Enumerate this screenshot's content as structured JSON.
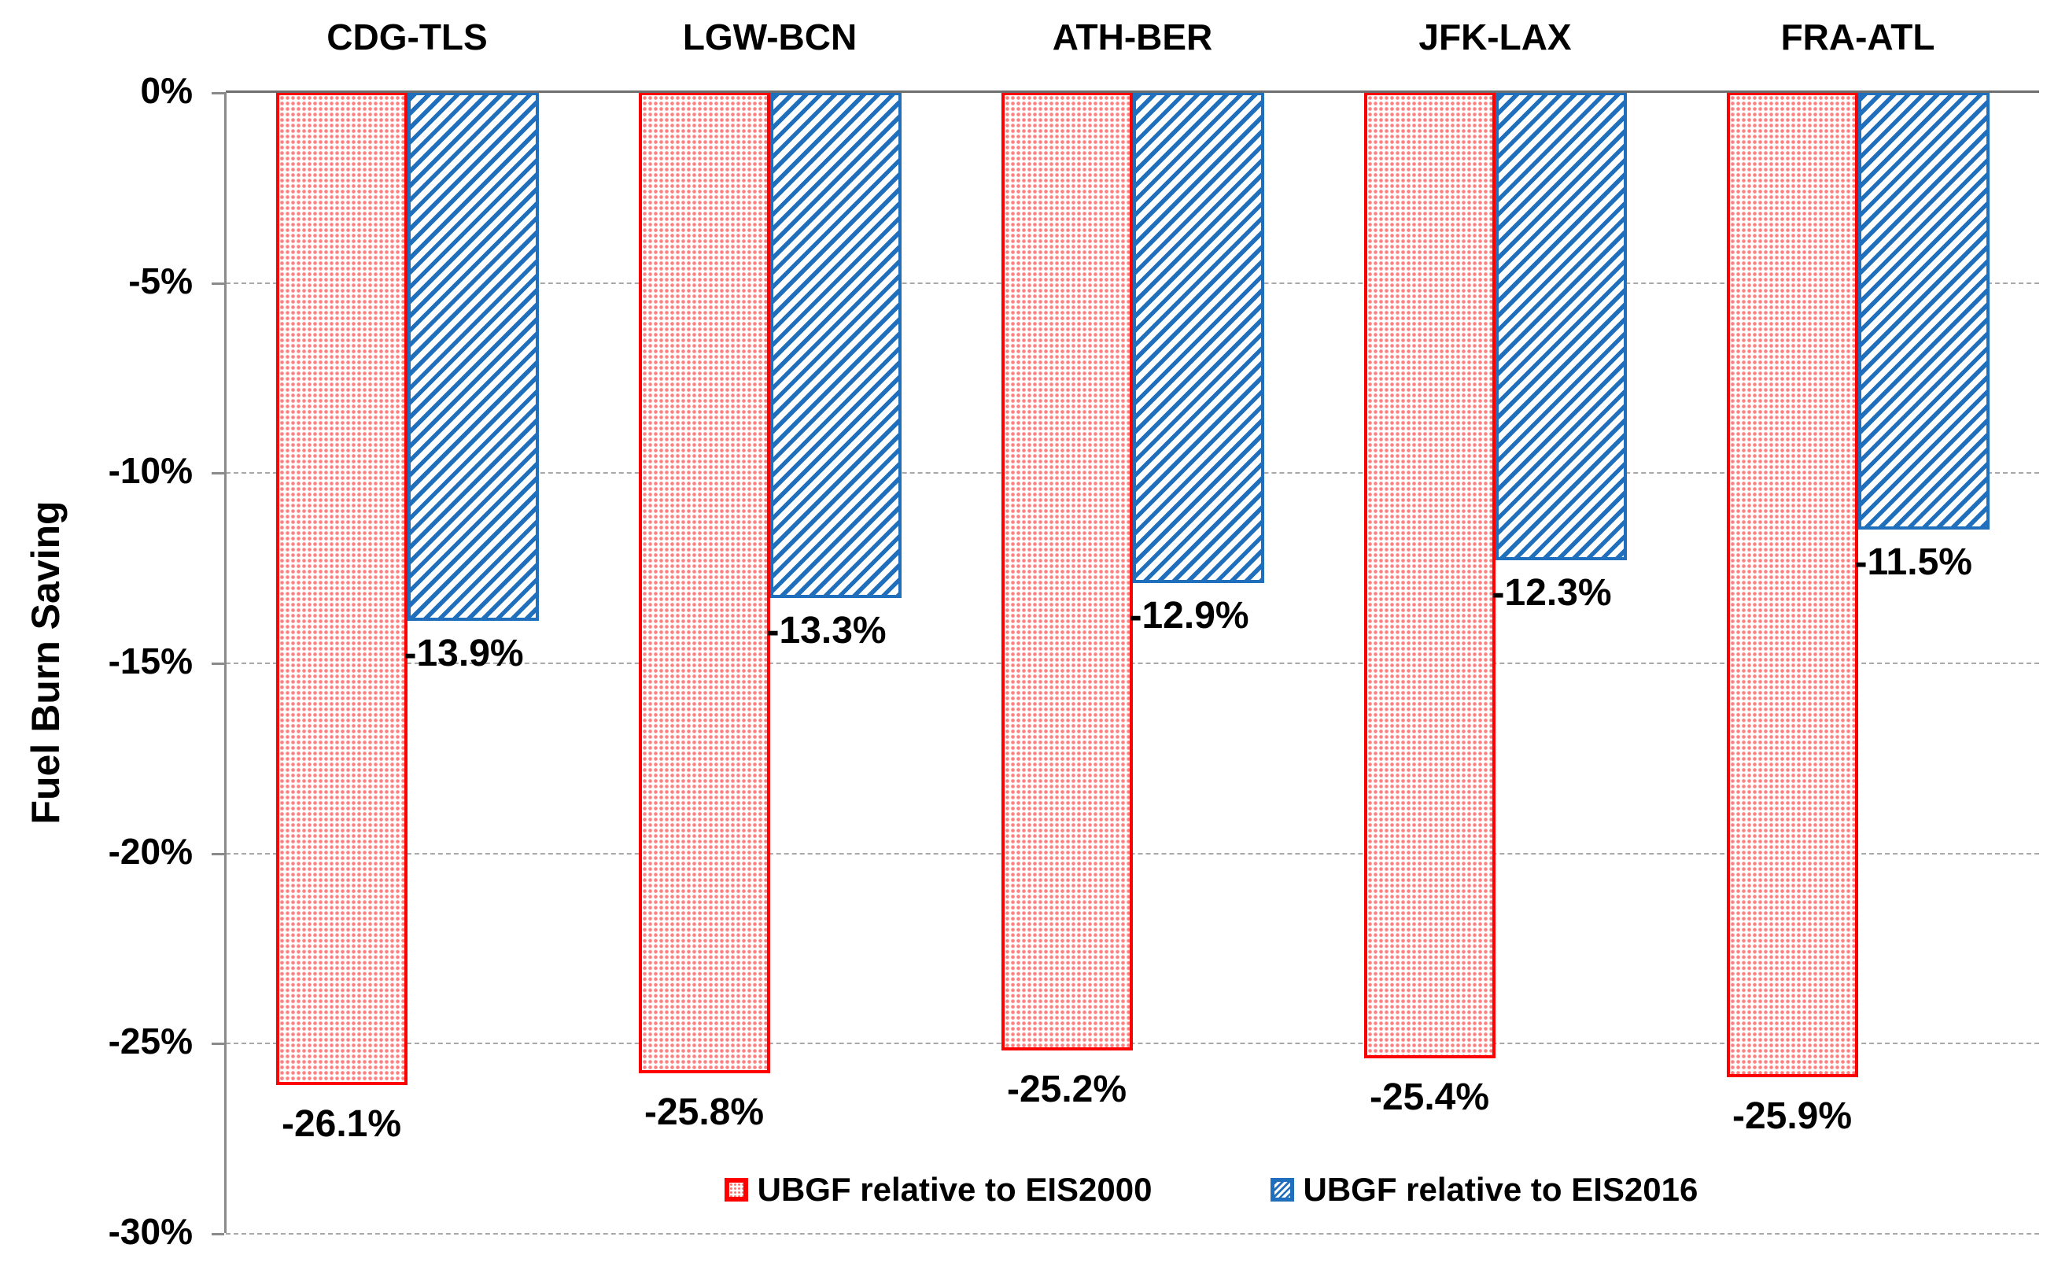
{
  "chart_data": {
    "type": "bar",
    "orientation": "vertical",
    "title": "",
    "ylabel": "Fuel Burn Saving",
    "xlabel": "",
    "ylim": [
      -30,
      0
    ],
    "ytick_step": 5,
    "yticks": [
      "0%",
      "-5%",
      "-10%",
      "-15%",
      "-20%",
      "-25%",
      "-30%"
    ],
    "grid": "horizontal-dashed",
    "legend_position": "bottom-inside",
    "categories": [
      "CDG-TLS",
      "LGW-BCN",
      "ATH-BER",
      "JFK-LAX",
      "FRA-ATL"
    ],
    "series": [
      {
        "name": "UBGF relative to EIS2000",
        "color": "#FF0000",
        "pattern": "dots",
        "values": [
          -26.1,
          -25.8,
          -25.2,
          -25.4,
          -25.9
        ],
        "data_labels": [
          "-26.1%",
          "-25.8%",
          "-25.2%",
          "-25.4%",
          "-25.9%"
        ]
      },
      {
        "name": "UBGF relative to EIS2016",
        "color": "#1F6FBC",
        "pattern": "diagonal-stripes",
        "values": [
          -13.9,
          -13.3,
          -12.9,
          -12.3,
          -11.5
        ],
        "data_labels": [
          "-13.9%",
          "-13.3%",
          "-12.9%",
          "-12.3%",
          "-11.5%"
        ]
      }
    ]
  },
  "legend": {
    "items": [
      {
        "label": "UBGF relative to EIS2000",
        "color": "#FF0000",
        "pattern": "dots"
      },
      {
        "label": "UBGF relative to EIS2016",
        "color": "#1F6FBC",
        "pattern": "diagonal-stripes"
      }
    ]
  }
}
